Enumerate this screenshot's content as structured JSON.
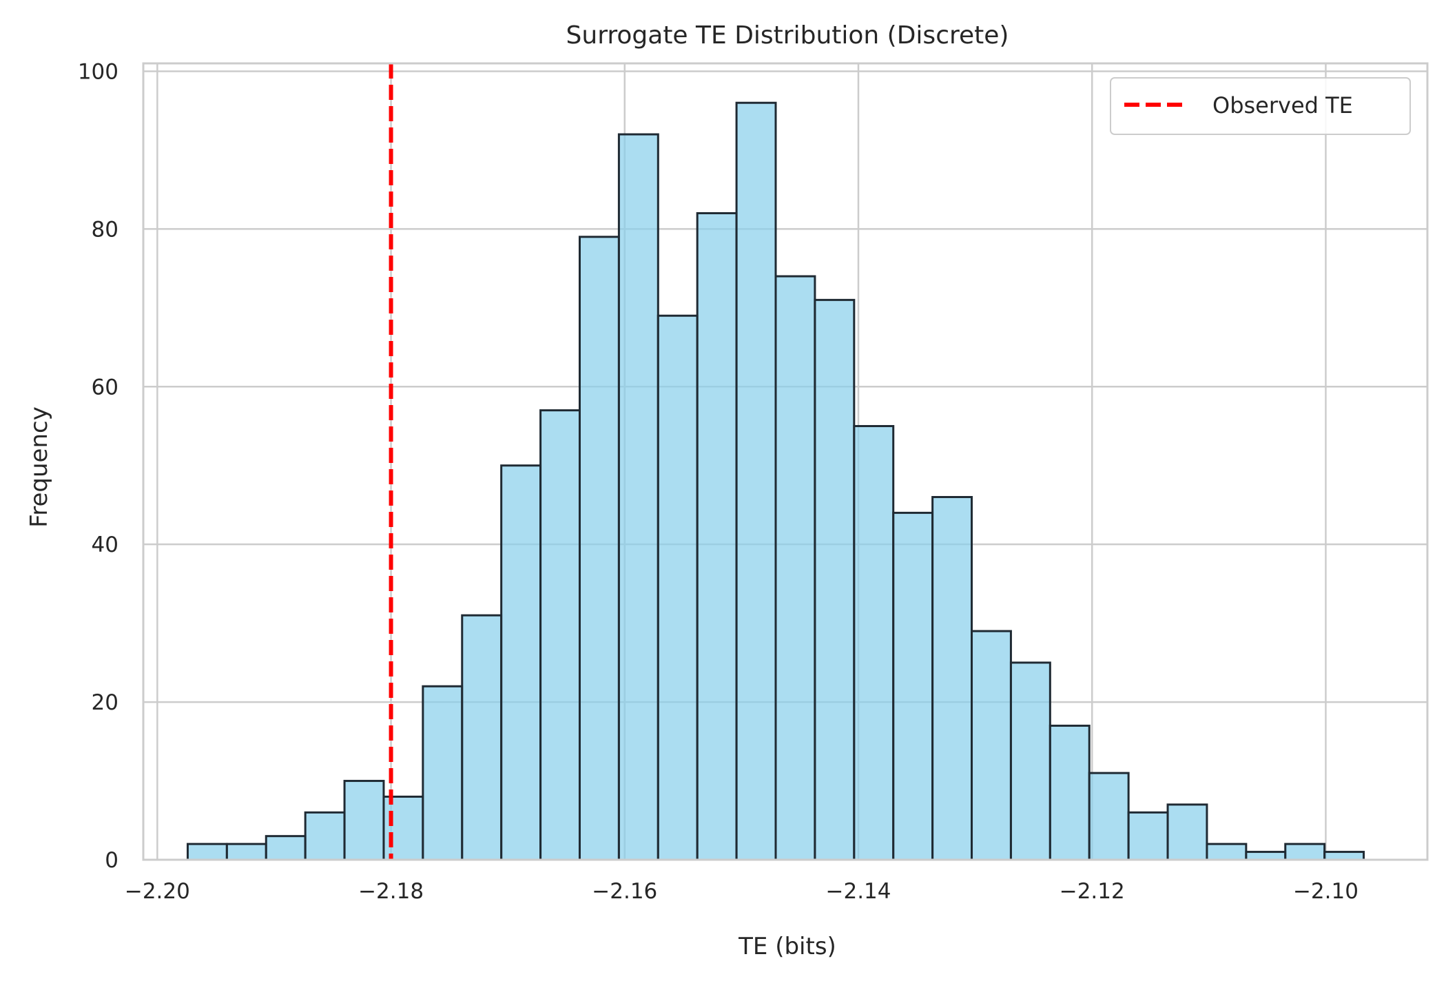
{
  "chart_data": {
    "type": "bar",
    "title": "Surrogate TE Distribution (Discrete)",
    "xlabel": "TE (bits)",
    "ylabel": "Frequency",
    "xlim": [
      -2.2012,
      -2.0913
    ],
    "ylim": [
      0,
      101
    ],
    "x_ticks": [
      -2.2,
      -2.18,
      -2.16,
      -2.14,
      -2.12,
      -2.1
    ],
    "x_tick_labels": [
      "−2.20",
      "−2.18",
      "−2.16",
      "−2.14",
      "−2.12",
      "−2.10"
    ],
    "y_ticks": [
      0,
      20,
      40,
      60,
      80,
      100
    ],
    "y_tick_labels": [
      "0",
      "20",
      "40",
      "60",
      "80",
      "100"
    ],
    "bin_start": -2.1974,
    "bin_width": 0.003355,
    "counts": [
      2,
      2,
      3,
      6,
      10,
      8,
      22,
      31,
      50,
      57,
      79,
      92,
      69,
      82,
      96,
      74,
      71,
      55,
      44,
      46,
      29,
      25,
      17,
      11,
      6,
      7,
      2,
      1,
      2,
      1
    ],
    "observed_te": -2.18,
    "grid": true,
    "legend_position": "top-right",
    "legend": [
      {
        "label": "Observed TE",
        "color": "#ff0000",
        "style": "dashed"
      }
    ],
    "colors": {
      "bar_fill": "#87ceeb",
      "bar_edge": "#1f2a33",
      "grid": "#cccccc",
      "observed_line": "#ff0000"
    }
  }
}
